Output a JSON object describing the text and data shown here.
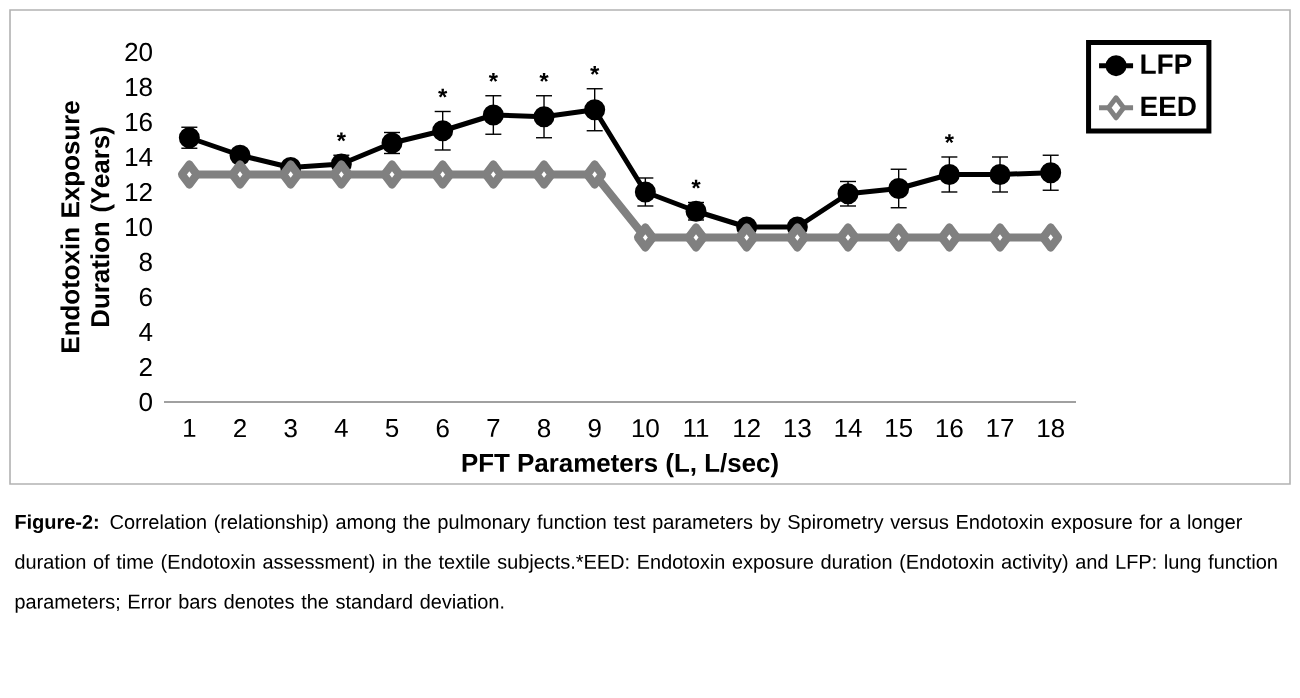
{
  "chart_data": {
    "type": "line",
    "xlabel": "PFT Parameters (L, L/sec)",
    "ylabel": "Endotoxin Exposure Duration (Years)",
    "categories": [
      "1",
      "2",
      "3",
      "4",
      "5",
      "6",
      "7",
      "8",
      "9",
      "10",
      "11",
      "12",
      "13",
      "14",
      "15",
      "16",
      "17",
      "18"
    ],
    "series": [
      {
        "name": "LFP",
        "color": "#000000",
        "marker": "circle",
        "values": [
          15.1,
          14.1,
          13.4,
          13.6,
          14.8,
          15.5,
          16.4,
          16.3,
          16.7,
          12.0,
          10.9,
          10.0,
          10.0,
          11.9,
          12.2,
          13.0,
          13.0,
          13.1
        ],
        "errors": [
          0.6,
          0.3,
          0.3,
          0.5,
          0.6,
          1.1,
          1.1,
          1.2,
          1.2,
          0.8,
          0.5,
          0.2,
          0.2,
          0.7,
          1.1,
          1.0,
          1.0,
          1.0
        ]
      },
      {
        "name": "EED",
        "color": "#808080",
        "marker": "diamond",
        "values": [
          13,
          13,
          13,
          13,
          13,
          13,
          13,
          13,
          13,
          9.4,
          9.4,
          9.4,
          9.4,
          9.4,
          9.4,
          9.4,
          9.4,
          9.4
        ]
      }
    ],
    "ylim": [
      0,
      20
    ],
    "yticks": [
      0,
      2,
      4,
      6,
      8,
      10,
      12,
      14,
      16,
      18,
      20
    ],
    "legend": "top right",
    "annotations": [
      {
        "text": "*",
        "x": "4",
        "y": 13.6
      },
      {
        "text": "*",
        "x": "6",
        "y": 15.5
      },
      {
        "text": "*",
        "x": "7",
        "y": 16.4
      },
      {
        "text": "*",
        "x": "8",
        "y": 16.3
      },
      {
        "text": "*",
        "x": "9",
        "y": 16.7
      },
      {
        "text": "*",
        "x": "11",
        "y": 10.9
      },
      {
        "text": "*",
        "x": "16",
        "y": 13.0
      },
      "**Figure-2:** Correlation (relationship) among the pulmonary function test parameters by Spirometry versus Endotoxin exposure for a longer duration of time (Endotoxin assessment) in the textile subjects.*EED: Endotoxin exposure duration (Endotoxin activity) and LFP: lung function parameters; Error bars denotes the standard deviation."
    ]
  }
}
